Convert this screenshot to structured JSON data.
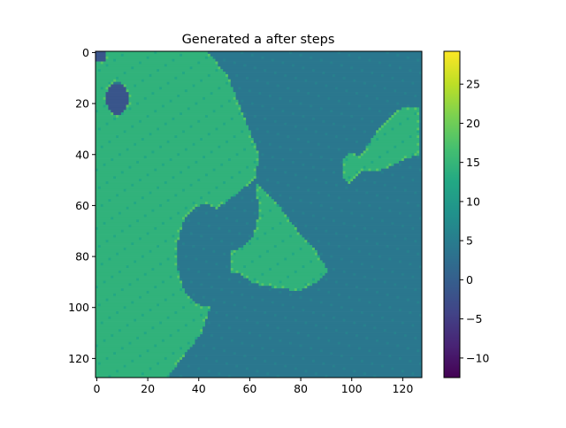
{
  "chart_data": {
    "type": "heatmap",
    "title": "Generated a after steps",
    "xlabel": "",
    "ylabel": "",
    "grid_size": [
      128,
      128
    ],
    "x_ticks": [
      0,
      20,
      40,
      60,
      80,
      100,
      120
    ],
    "y_ticks": [
      0,
      20,
      40,
      60,
      80,
      100,
      120
    ],
    "colorbar": {
      "min": -12.5,
      "max": 29.2,
      "ticks": [
        -10,
        -5,
        0,
        5,
        10,
        15,
        20,
        25
      ],
      "colormap": "viridis"
    },
    "levels": {
      "water": 4.0,
      "land": 14.3,
      "shore": 18.0,
      "deep": -1.5
    },
    "regions": {
      "main_land_boundary_y": [
        0,
        10,
        20,
        30,
        40,
        50,
        60,
        70,
        80,
        90,
        100,
        110,
        127
      ],
      "main_land_boundary_x": [
        44,
        52,
        56,
        60,
        64,
        63,
        50,
        35,
        32,
        33,
        45,
        42,
        29
      ],
      "peninsula_polygon": [
        [
          63,
          52
        ],
        [
          70,
          58
        ],
        [
          79,
          70
        ],
        [
          86,
          77
        ],
        [
          91,
          86
        ],
        [
          88,
          90
        ],
        [
          80,
          94
        ],
        [
          72,
          93
        ],
        [
          62,
          91
        ],
        [
          56,
          87
        ],
        [
          53,
          82
        ],
        [
          55,
          78
        ],
        [
          58,
          77
        ],
        [
          62,
          72
        ],
        [
          64,
          64
        ]
      ],
      "island_polygon": [
        [
          97,
          42
        ],
        [
          100,
          40
        ],
        [
          104,
          41
        ],
        [
          110,
          32
        ],
        [
          116,
          25
        ],
        [
          121,
          22
        ],
        [
          127,
          22
        ],
        [
          127,
          41
        ],
        [
          122,
          42
        ],
        [
          116,
          45
        ],
        [
          111,
          47
        ],
        [
          105,
          47
        ],
        [
          100,
          52
        ],
        [
          97,
          50
        ]
      ]
    }
  }
}
